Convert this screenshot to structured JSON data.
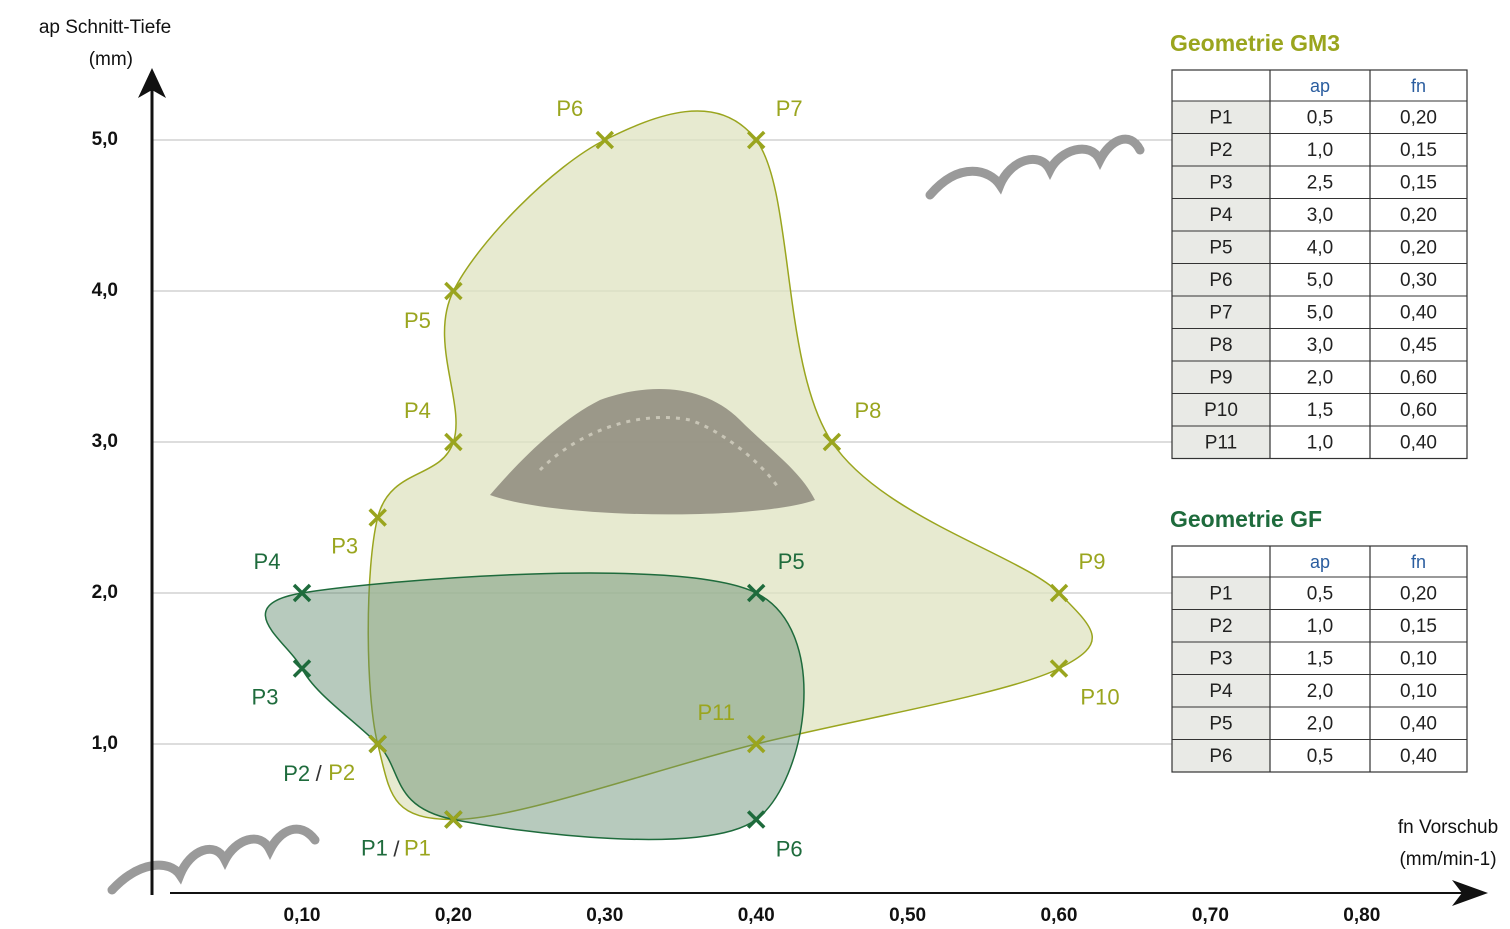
{
  "chart_data": {
    "type": "scatter",
    "x_label": "fn Vorschub",
    "x_label_unit": "(mm/min-1)",
    "y_label": "ap Schnitt-Tiefe",
    "y_label_unit": "(mm)",
    "xlim": [
      0,
      0.88
    ],
    "ylim": [
      0,
      5.5
    ],
    "xticks": [
      {
        "value": 0.1,
        "label": "0,10"
      },
      {
        "value": 0.2,
        "label": "0,20"
      },
      {
        "value": 0.3,
        "label": "0,30"
      },
      {
        "value": 0.4,
        "label": "0,40"
      },
      {
        "value": 0.5,
        "label": "0,50"
      },
      {
        "value": 0.6,
        "label": "0,60"
      },
      {
        "value": 0.7,
        "label": "0,70"
      },
      {
        "value": 0.8,
        "label": "0,80"
      }
    ],
    "yticks": [
      {
        "value": 1,
        "label": "1,0"
      },
      {
        "value": 2,
        "label": "2,0"
      },
      {
        "value": 3,
        "label": "3,0"
      },
      {
        "value": 4,
        "label": "4,0"
      },
      {
        "value": 5,
        "label": "5,0"
      }
    ],
    "grid": true,
    "shared_label_separator": "/",
    "series": [
      {
        "name": "Geometrie GM3",
        "color": "#9aa51e",
        "fill": "#dfe3c0",
        "x": [
          0.2,
          0.15,
          0.15,
          0.2,
          0.2,
          0.3,
          0.4,
          0.45,
          0.6,
          0.6,
          0.4
        ],
        "values": [
          0.5,
          1.0,
          2.5,
          3.0,
          4.0,
          5.0,
          5.0,
          3.0,
          2.0,
          1.5,
          1.0
        ],
        "point_labels": [
          "P1",
          "P2",
          "P3",
          "P4",
          "P5",
          "P6",
          "P7",
          "P8",
          "P9",
          "P10",
          "P11"
        ]
      },
      {
        "name": "Geometrie GF",
        "color": "#1e6b3c",
        "fill": "#5f8a6c",
        "x": [
          0.2,
          0.15,
          0.1,
          0.1,
          0.4,
          0.4
        ],
        "values": [
          0.5,
          1.0,
          1.5,
          2.0,
          2.0,
          0.5
        ],
        "point_labels": [
          "P1",
          "P2",
          "P3",
          "P4",
          "P5",
          "P6"
        ]
      }
    ]
  },
  "tables": [
    {
      "header": [
        "ap",
        "fn"
      ],
      "rows": [
        [
          "P1",
          "0,5",
          "0,20"
        ],
        [
          "P2",
          "1,0",
          "0,15"
        ],
        [
          "P3",
          "2,5",
          "0,15"
        ],
        [
          "P4",
          "3,0",
          "0,20"
        ],
        [
          "P5",
          "4,0",
          "0,20"
        ],
        [
          "P6",
          "5,0",
          "0,30"
        ],
        [
          "P7",
          "5,0",
          "0,40"
        ],
        [
          "P8",
          "3,0",
          "0,45"
        ],
        [
          "P9",
          "2,0",
          "0,60"
        ],
        [
          "P10",
          "1,5",
          "0,60"
        ],
        [
          "P11",
          "1,0",
          "0,40"
        ]
      ]
    },
    {
      "header": [
        "ap",
        "fn"
      ],
      "rows": [
        [
          "P1",
          "0,5",
          "0,20"
        ],
        [
          "P2",
          "1,0",
          "0,15"
        ],
        [
          "P3",
          "1,5",
          "0,10"
        ],
        [
          "P4",
          "2,0",
          "0,10"
        ],
        [
          "P5",
          "2,0",
          "0,40"
        ],
        [
          "P6",
          "0,5",
          "0,40"
        ]
      ]
    }
  ]
}
